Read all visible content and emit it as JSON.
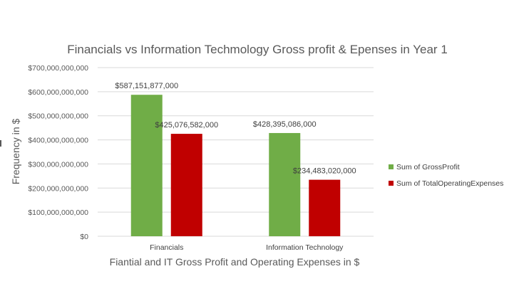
{
  "chart_data": {
    "type": "bar",
    "title": "Financials vs Information Techmology Gross profit & Epenses in Year 1",
    "xlabel": "Fiantial and IT Gross Profit and Operating Expenses in $",
    "ylabel": "Frequency in $",
    "categories": [
      "Financials",
      "Information Technology"
    ],
    "series": [
      {
        "name": "Sum of GrossProfit",
        "color": "#70ad47",
        "values": [
          587151877000,
          428395086000
        ],
        "labels": [
          "$587,151,877,000",
          "$428,395,086,000"
        ]
      },
      {
        "name": "Sum of TotalOperatingExpenses",
        "color": "#c00000",
        "values": [
          425076582000,
          234483020000
        ],
        "labels": [
          "$425,076,582,000",
          "$234,483,020,000"
        ]
      }
    ],
    "yticks": [
      {
        "value": 0,
        "label": "$0"
      },
      {
        "value": 100000000000,
        "label": "$100,000,000,000"
      },
      {
        "value": 200000000000,
        "label": "$200,000,000,000"
      },
      {
        "value": 300000000000,
        "label": "$300,000,000,000"
      },
      {
        "value": 400000000000,
        "label": "$400,000,000,000"
      },
      {
        "value": 500000000000,
        "label": "$500,000,000,000"
      },
      {
        "value": 600000000000,
        "label": "$600,000,000,000"
      },
      {
        "value": 700000000000,
        "label": "$700,000,000,000"
      }
    ],
    "ylim": [
      0,
      700000000000
    ],
    "grid": true,
    "legend_position": "right"
  }
}
